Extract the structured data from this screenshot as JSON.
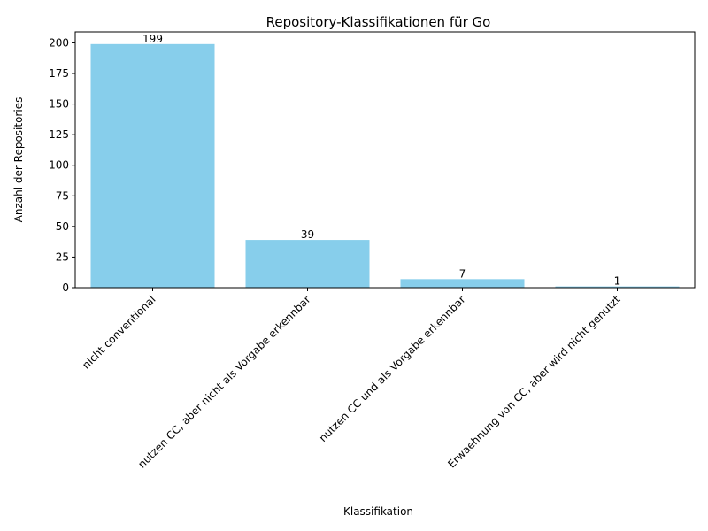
{
  "chart_data": {
    "type": "bar",
    "title": "Repository-Klassifikationen für Go",
    "xlabel": "Klassifikation",
    "ylabel": "Anzahl der Repositories",
    "categories": [
      "nicht conventional",
      "nutzen CC, aber nicht als Vorgabe erkennbar",
      "nutzen CC und als Vorgabe erkennbar",
      "Erwaehnung von CC, aber wird nicht genutzt"
    ],
    "values": [
      199,
      39,
      7,
      1
    ],
    "data_labels": [
      "199",
      "39",
      "7",
      "1"
    ],
    "yticks": [
      0,
      25,
      50,
      75,
      100,
      125,
      150,
      175,
      200
    ],
    "ylim": [
      0,
      209
    ],
    "grid": false,
    "bar_color": "#87ceeb"
  }
}
